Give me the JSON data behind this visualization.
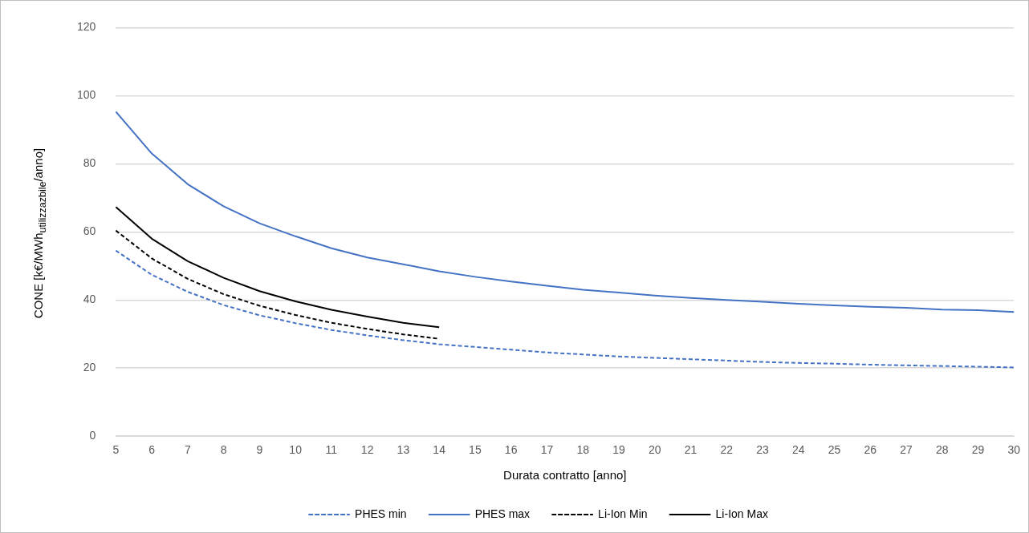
{
  "chart_data": {
    "type": "line",
    "xlabel": "Durata contratto [anno]",
    "ylabel": "CONE [k€/MWh$_{utilizzazbile}$/anno]",
    "categories": [
      "5",
      "6",
      "7",
      "8",
      "9",
      "10",
      "11",
      "12",
      "13",
      "14",
      "15",
      "16",
      "17",
      "18",
      "19",
      "20",
      "21",
      "22",
      "23",
      "24",
      "25",
      "26",
      "27",
      "28",
      "29",
      "30"
    ],
    "series": [
      {
        "name": "PHES min",
        "color": "#4472c4",
        "line_style": "dashed",
        "values": [
          54.5,
          47.4,
          42.4,
          38.5,
          35.5,
          33.2,
          31.2,
          29.6,
          28.2,
          27,
          26.2,
          25.4,
          24.6,
          24,
          23.4,
          23,
          22.6,
          22.2,
          21.8,
          21.5,
          21.3,
          21,
          20.8,
          20.6,
          20.4,
          20.2
        ]
      },
      {
        "name": "PHES max",
        "color": "#4472c4",
        "line_style": "solid",
        "values": [
          95.3,
          83,
          74,
          67.5,
          62.5,
          58.7,
          55.2,
          52.5,
          50.5,
          48.4,
          46.8,
          45.4,
          44.2,
          43,
          42.2,
          41.3,
          40.6,
          40,
          39.5,
          38.9,
          38.4,
          38,
          37.7,
          37.2,
          37,
          36.5
        ]
      },
      {
        "name": "Li-Ion Min",
        "color": "#000000",
        "line_style": "dashed",
        "values": [
          60.4,
          52.2,
          46.2,
          41.7,
          38.3,
          35.6,
          33.3,
          31.5,
          29.9,
          28.6,
          null,
          null,
          null,
          null,
          null,
          null,
          null,
          null,
          null,
          null,
          null,
          null,
          null,
          null,
          null,
          null
        ]
      },
      {
        "name": "Li-Ion Max",
        "color": "#000000",
        "line_style": "solid",
        "values": [
          67.3,
          58,
          51.4,
          46.5,
          42.6,
          39.6,
          37.1,
          35.1,
          33.3,
          32,
          null,
          null,
          null,
          null,
          null,
          null,
          null,
          null,
          null,
          null,
          null,
          null,
          null,
          null,
          null,
          null
        ]
      }
    ],
    "ylim": [
      0,
      120
    ],
    "yticks": [
      0,
      20,
      40,
      60,
      80,
      100,
      120
    ],
    "grid": "y",
    "legend": "bottom",
    "marker": "none"
  }
}
